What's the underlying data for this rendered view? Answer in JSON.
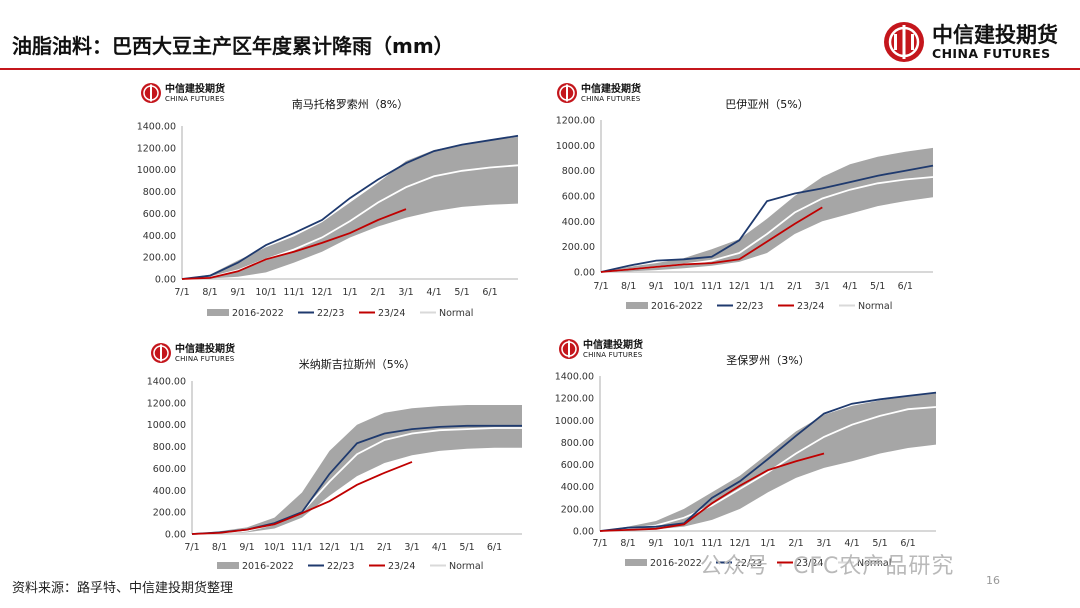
{
  "page": {
    "title": "油脂油料：巴西大豆主产区年度累计降雨（mm）",
    "brand_cn": "中信建投期货",
    "brand_en": "CHINA FUTURES",
    "mini_brand_cn": "中信建投期货",
    "mini_brand_en": "CHINA FUTURES",
    "source": "资料来源：路孚特、中信建投期货整理",
    "watermark": "公众号 · CFC农产品研究",
    "page_number": "16",
    "colors": {
      "accent": "#c4161c",
      "band": "#a6a6a6",
      "series_2223": "#1f3a6e",
      "series_2324": "#c00000",
      "normal": "#ffffff"
    }
  },
  "chart_data": [
    {
      "type": "line",
      "title": "南马托格罗索州（8%）",
      "ylim": [
        0,
        1400
      ],
      "yticks": [
        "0.00",
        "200.00",
        "400.00",
        "600.00",
        "800.00",
        "1000.00",
        "1200.00",
        "1400.00"
      ],
      "x_ticks": [
        "7/1",
        "8/1",
        "9/1",
        "10/1",
        "11/1",
        "12/1",
        "1/1",
        "2/1",
        "3/1",
        "4/1",
        "5/1",
        "6/1"
      ],
      "legend": [
        "2016-2022",
        "22/23",
        "23/24",
        "Normal"
      ],
      "x": [
        0,
        1,
        2,
        3,
        4,
        5,
        6,
        7,
        8,
        9,
        10,
        11,
        12
      ],
      "band_low": [
        0,
        5,
        20,
        60,
        150,
        250,
        380,
        480,
        560,
        620,
        660,
        680,
        690
      ],
      "band_high": [
        0,
        40,
        170,
        290,
        390,
        520,
        700,
        880,
        1080,
        1180,
        1230,
        1270,
        1300
      ],
      "normal": [
        0,
        15,
        80,
        180,
        270,
        380,
        530,
        700,
        840,
        940,
        990,
        1020,
        1040
      ],
      "series": [
        {
          "name": "22/23",
          "values": [
            0,
            30,
            150,
            310,
            420,
            540,
            740,
            910,
            1060,
            1170,
            1230,
            1270,
            1310
          ]
        },
        {
          "name": "23/24",
          "values": [
            0,
            10,
            70,
            180,
            250,
            330,
            420,
            540,
            640,
            null,
            null,
            null,
            null
          ]
        }
      ]
    },
    {
      "type": "line",
      "title": "巴伊亚州（5%）",
      "ylim": [
        0,
        1200
      ],
      "yticks": [
        "0.00",
        "200.00",
        "400.00",
        "600.00",
        "800.00",
        "1000.00",
        "1200.00"
      ],
      "x_ticks": [
        "7/1",
        "8/1",
        "9/1",
        "10/1",
        "11/1",
        "12/1",
        "1/1",
        "2/1",
        "3/1",
        "4/1",
        "5/1",
        "6/1"
      ],
      "legend": [
        "2016-2022",
        "22/23",
        "23/24",
        "Normal"
      ],
      "x": [
        0,
        1,
        2,
        3,
        4,
        5,
        6,
        7,
        8,
        9,
        10,
        11,
        12
      ],
      "band_low": [
        0,
        5,
        15,
        30,
        50,
        80,
        150,
        300,
        400,
        460,
        520,
        560,
        590
      ],
      "band_high": [
        0,
        40,
        70,
        110,
        180,
        260,
        420,
        600,
        750,
        850,
        910,
        950,
        980
      ],
      "normal": [
        0,
        20,
        40,
        60,
        90,
        150,
        300,
        470,
        580,
        650,
        700,
        730,
        750
      ],
      "series": [
        {
          "name": "22/23",
          "values": [
            0,
            50,
            90,
            100,
            120,
            250,
            560,
            620,
            660,
            710,
            760,
            800,
            840
          ]
        },
        {
          "name": "23/24",
          "values": [
            0,
            20,
            40,
            60,
            70,
            100,
            240,
            380,
            510,
            null,
            null,
            null,
            null
          ]
        }
      ]
    },
    {
      "type": "line",
      "title": "米纳斯吉拉斯州（5%）",
      "ylim": [
        0,
        1400
      ],
      "yticks": [
        "0.00",
        "200.00",
        "400.00",
        "600.00",
        "800.00",
        "1000.00",
        "1200.00",
        "1400.00"
      ],
      "x_ticks": [
        "7/1",
        "8/1",
        "9/1",
        "10/1",
        "11/1",
        "12/1",
        "1/1",
        "2/1",
        "3/1",
        "4/1",
        "5/1",
        "6/1"
      ],
      "legend": [
        "2016-2022",
        "22/23",
        "23/24",
        "Normal"
      ],
      "x": [
        0,
        1,
        2,
        3,
        4,
        5,
        6,
        7,
        8,
        9,
        10,
        11,
        12
      ],
      "band_low": [
        0,
        5,
        15,
        50,
        150,
        350,
        530,
        650,
        720,
        760,
        780,
        790,
        790
      ],
      "band_high": [
        0,
        25,
        60,
        150,
        380,
        760,
        1000,
        1110,
        1150,
        1170,
        1180,
        1180,
        1180
      ],
      "normal": [
        0,
        10,
        30,
        90,
        200,
        480,
        730,
        860,
        920,
        950,
        960,
        970,
        970
      ],
      "series": [
        {
          "name": "22/23",
          "values": [
            0,
            15,
            40,
            100,
            200,
            550,
            830,
            920,
            960,
            980,
            990,
            990,
            990
          ]
        },
        {
          "name": "23/24",
          "values": [
            0,
            10,
            40,
            90,
            190,
            300,
            450,
            560,
            660,
            null,
            null,
            null,
            null
          ]
        }
      ]
    },
    {
      "type": "line",
      "title": "圣保罗州（3%）",
      "ylim": [
        0,
        1400
      ],
      "yticks": [
        "0.00",
        "200.00",
        "400.00",
        "600.00",
        "800.00",
        "1000.00",
        "1200.00",
        "1400.00"
      ],
      "x_ticks": [
        "7/1",
        "8/1",
        "9/1",
        "10/1",
        "11/1",
        "12/1",
        "1/1",
        "2/1",
        "3/1",
        "4/1",
        "5/1",
        "6/1"
      ],
      "legend": [
        "2016-2022",
        "22/23",
        "23/24",
        "Normal"
      ],
      "x": [
        0,
        1,
        2,
        3,
        4,
        5,
        6,
        7,
        8,
        9,
        10,
        11,
        12
      ],
      "band_low": [
        0,
        5,
        15,
        40,
        100,
        200,
        350,
        480,
        570,
        630,
        700,
        750,
        780
      ],
      "band_high": [
        0,
        40,
        90,
        200,
        350,
        500,
        700,
        900,
        1050,
        1130,
        1180,
        1220,
        1250
      ],
      "normal": [
        0,
        20,
        50,
        120,
        230,
        380,
        530,
        700,
        850,
        960,
        1040,
        1100,
        1120
      ],
      "series": [
        {
          "name": "22/23",
          "values": [
            0,
            30,
            40,
            70,
            300,
            450,
            650,
            860,
            1060,
            1150,
            1190,
            1220,
            1250
          ]
        },
        {
          "name": "23/24",
          "values": [
            0,
            10,
            20,
            60,
            250,
            410,
            550,
            630,
            700,
            null,
            null,
            null,
            null
          ]
        }
      ]
    }
  ]
}
